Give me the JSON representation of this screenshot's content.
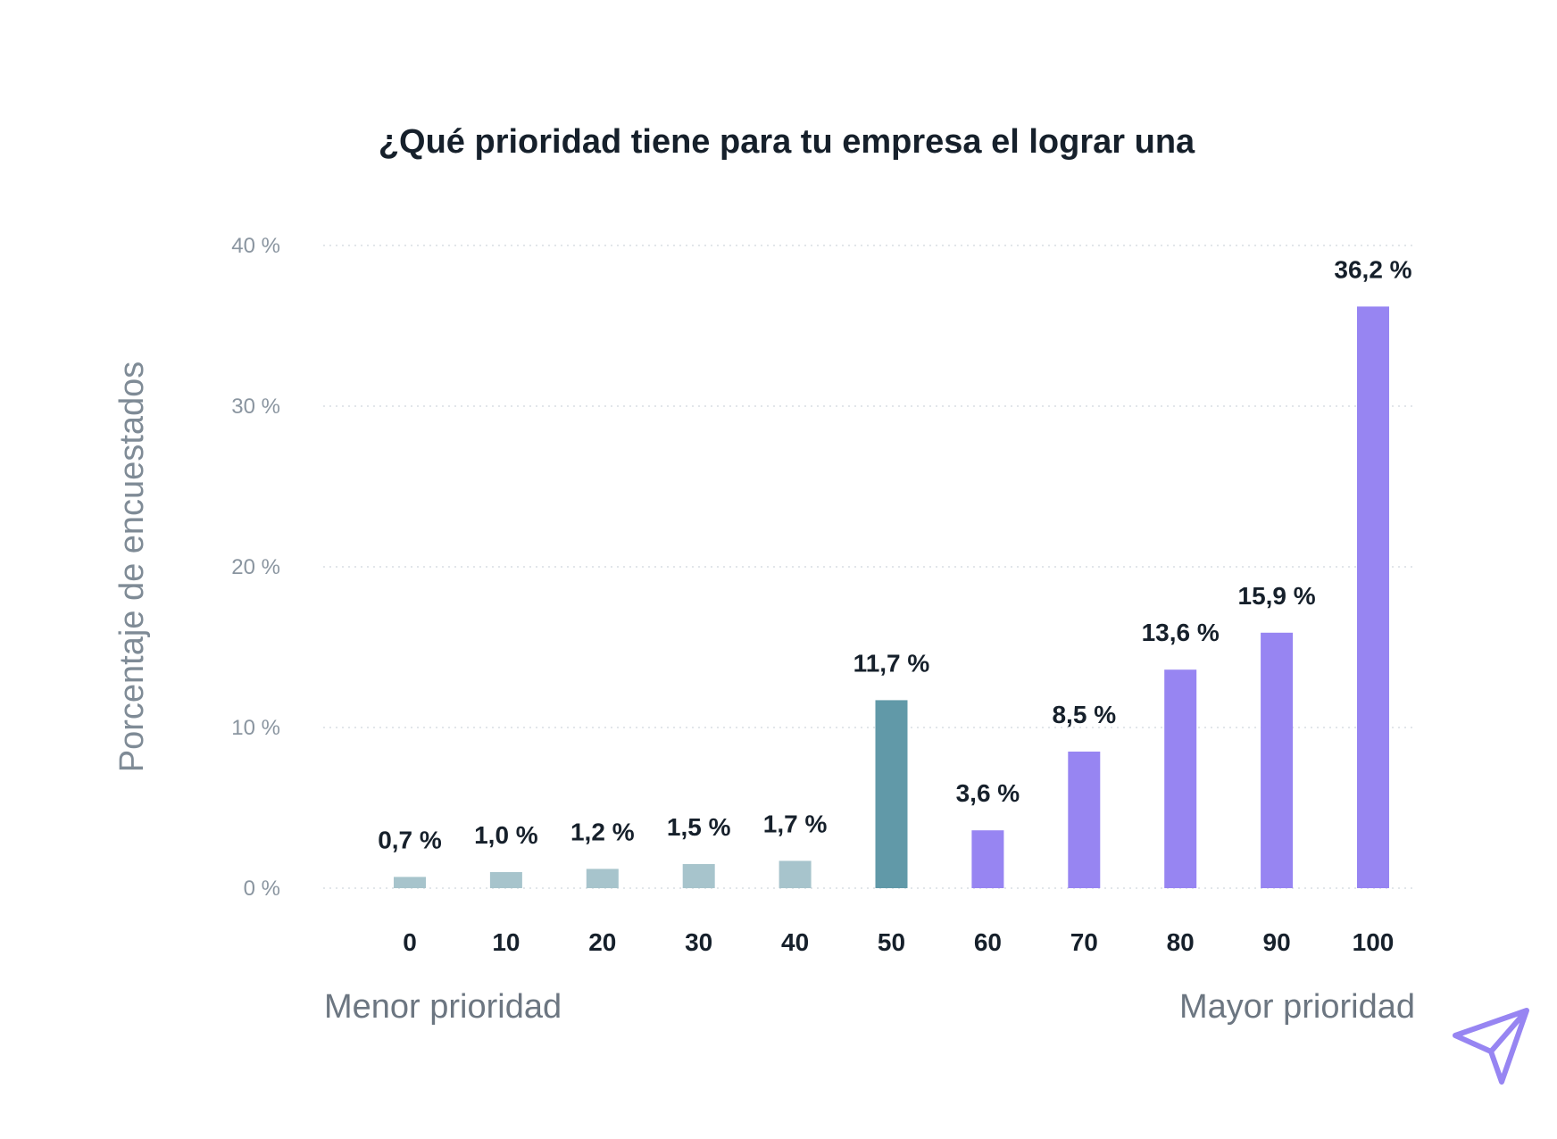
{
  "chart_data": {
    "type": "bar",
    "title": "¿Qué prioridad tiene para tu empresa el lograr una",
    "ylabel": "Porcentaje de encuestados",
    "xlabel": "",
    "ylim": [
      0,
      40
    ],
    "y_ticks": [
      0,
      10,
      20,
      30,
      40
    ],
    "y_tick_labels": [
      "0 %",
      "10 %",
      "20 %",
      "30 %",
      "40 %"
    ],
    "grid": true,
    "categories": [
      "0",
      "10",
      "20",
      "30",
      "40",
      "50",
      "60",
      "70",
      "80",
      "90",
      "100"
    ],
    "values": [
      0.7,
      1.0,
      1.2,
      1.5,
      1.7,
      11.7,
      3.6,
      8.5,
      13.6,
      15.9,
      36.2
    ],
    "data_labels": [
      "0,7 %",
      "1,0 %",
      "1,2 %",
      "1,5 %",
      "1,7 %",
      "11,7 %",
      "3,6 %",
      "8,5 %",
      "13,6 %",
      "15,9 %",
      "36,2 %"
    ],
    "bar_colors": [
      "#a7c4cc",
      "#a7c4cc",
      "#a7c4cc",
      "#a7c4cc",
      "#a7c4cc",
      "#6199a8",
      "#9785f2",
      "#9785f2",
      "#9785f2",
      "#9785f2",
      "#9785f2"
    ],
    "axis_end_labels": {
      "left": "Menor prioridad",
      "right": "Mayor prioridad"
    }
  },
  "logo": {
    "name": "paper-plane-icon",
    "color": "#9785f2"
  }
}
